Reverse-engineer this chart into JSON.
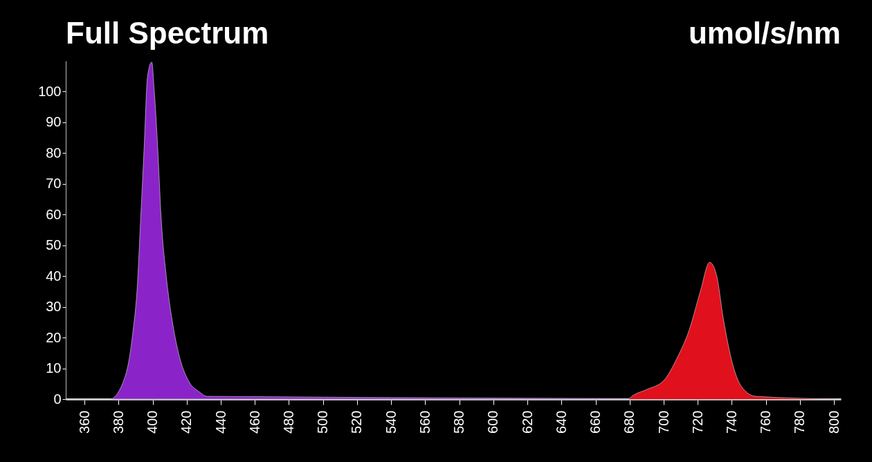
{
  "chart_data": {
    "type": "area",
    "title": "Full Spectrum",
    "ylabel": "umol/s/nm",
    "xlim": [
      349,
      804
    ],
    "xticks": [
      360,
      380,
      400,
      420,
      440,
      460,
      480,
      500,
      520,
      540,
      560,
      580,
      600,
      620,
      640,
      660,
      680,
      700,
      720,
      740,
      760,
      780,
      800
    ],
    "ylim": [
      0,
      110
    ],
    "yticks": [
      0,
      10,
      20,
      30,
      40,
      50,
      60,
      70,
      80,
      90,
      100
    ],
    "grid": false,
    "series": [
      {
        "color": "#8a24c8",
        "x": [
          349,
          375,
          384,
          388.4,
          391,
          393,
          395,
          397,
          399.5,
          401,
          403,
          405,
          408,
          411.5,
          415.5,
          421,
          427.5,
          432,
          804
        ],
        "values": [
          0,
          0,
          7.6,
          21.7,
          36.7,
          59,
          81.6,
          105,
          109.6,
          100,
          81.6,
          59,
          40,
          25.5,
          14.3,
          6,
          2.3,
          0.9,
          0
        ]
      },
      {
        "color": "#e0101c",
        "x": [
          349,
          679,
          682,
          690,
          700,
          708,
          715,
          721.5,
          727,
          731,
          735,
          740.5,
          746,
          754,
          804
        ],
        "values": [
          0,
          0,
          1.2,
          3.1,
          6,
          13.5,
          22.5,
          35,
          44.5,
          40.4,
          26.2,
          11.3,
          3.8,
          0.9,
          0
        ]
      }
    ]
  }
}
